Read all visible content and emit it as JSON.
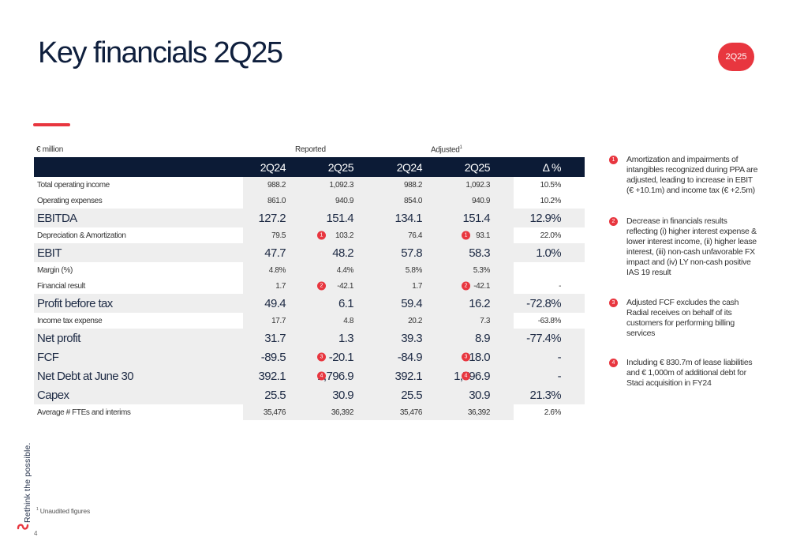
{
  "title": "Key financials 2Q25",
  "badge": "2Q25",
  "unit_label": "€ million",
  "group_reported": "Reported",
  "group_adjusted": "Adjusted",
  "group_adjusted_sup": "1",
  "columns": [
    "2Q24",
    "2Q25",
    "2Q24",
    "2Q25",
    "Δ %"
  ],
  "rows": [
    {
      "label": "Total operating income",
      "values": [
        "988.2",
        "1,092.3",
        "988.2",
        "1,092.3",
        "10.5%"
      ]
    },
    {
      "label": "Operating expenses",
      "values": [
        "861.0",
        "940.9",
        "854.0",
        "940.9",
        "10.2%"
      ]
    },
    {
      "label": "EBITDA",
      "values": [
        "127.2",
        "151.4",
        "134.1",
        "151.4",
        "12.9%"
      ]
    },
    {
      "label": "Depreciation & Amortization",
      "values": [
        "79.5",
        "103.2",
        "76.4",
        "93.1",
        "22.0%"
      ],
      "marker": "1"
    },
    {
      "label": "EBIT",
      "values": [
        "47.7",
        "48.2",
        "57.8",
        "58.3",
        "1.0%"
      ]
    },
    {
      "label": "Margin (%)",
      "values": [
        "4.8%",
        "4.4%",
        "5.8%",
        "5.3%",
        ""
      ]
    },
    {
      "label": "Financial result",
      "values": [
        "1.7",
        "-42.1",
        "1.7",
        "-42.1",
        "-"
      ],
      "marker": "2"
    },
    {
      "label": "Profit before tax",
      "values": [
        "49.4",
        "6.1",
        "59.4",
        "16.2",
        "-72.8%"
      ]
    },
    {
      "label": "Income tax expense",
      "values": [
        "17.7",
        "4.8",
        "20.2",
        "7.3",
        "-63.8%"
      ]
    },
    {
      "label": "Net profit",
      "values": [
        "31.7",
        "1.3",
        "39.3",
        "8.9",
        "-77.4%"
      ]
    },
    {
      "label": "FCF",
      "values": [
        "-89.5",
        "-20.1",
        "-84.9",
        "-18.0",
        "-"
      ],
      "marker": "3"
    },
    {
      "label": "Net Debt at June 30",
      "values": [
        "392.1",
        "1,796.9",
        "392.1",
        "1,796.9",
        "-"
      ],
      "marker": "4"
    },
    {
      "label": "Capex",
      "values": [
        "25.5",
        "30.9",
        "25.5",
        "30.9",
        "21.3%"
      ]
    },
    {
      "label": "Average # FTEs and interims",
      "values": [
        "35,476",
        "36,392",
        "35,476",
        "36,392",
        "2.6%"
      ]
    }
  ],
  "notes": [
    {
      "num": "1",
      "text": "Amortization and impairments of intangibles recognized during PPA are adjusted, leading to increase in EBIT (€ +10.1m) and income tax (€ +2.5m)"
    },
    {
      "num": "2",
      "text": "Decrease in financials results reflecting (i) higher interest expense & lower interest income, (ii) higher lease interest, (iii) non-cash unfavorable FX impact and (iv) LY non-cash positive IAS 19 result"
    },
    {
      "num": "3",
      "text": "Adjusted FCF excludes the cash Radial receives on behalf of its customers for performing billing services"
    },
    {
      "num": "4",
      "text": "Including € 830.7m of lease liabilities and € 1,000m of additional debt for Staci acquisition in FY24"
    }
  ],
  "footnote_sup": "1",
  "footnote": "Unaudited figures",
  "page_number": "4",
  "side_text": "Rethink the possible.",
  "colors": {
    "accent": "#e8363f",
    "header_bg": "#0c1b36",
    "shade": "#eeeeee"
  }
}
